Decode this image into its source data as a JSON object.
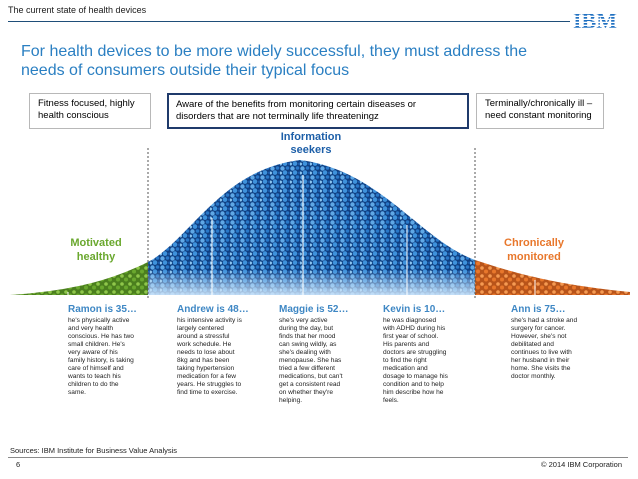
{
  "header": {
    "label": "The current state of health devices",
    "logo": "IBM",
    "headline_line1": "For health devices to be more widely successful, they must address the",
    "headline_line2": "needs of consumers outside their typical focus"
  },
  "callouts": {
    "left": [
      "Fitness focused, highly",
      "health conscious"
    ],
    "middle": [
      "Aware of the benefits from monitoring certain diseases or",
      "disorders that are not terminally life threateningz"
    ],
    "right": [
      "Terminally/chronically ill –",
      "need constant monitoring"
    ]
  },
  "segments": {
    "left": [
      "Motivated",
      "healthy"
    ],
    "center": [
      "Information",
      "seekers"
    ],
    "right": [
      "Chronically",
      "monitored"
    ]
  },
  "personas": [
    {
      "heading": "Ramon is 35…",
      "lines": [
        "he's physically active",
        "and very health",
        "conscious. He has two",
        "small children. He's",
        "very aware of his",
        "family history, is taking",
        "care of himself and",
        "wants to teach his",
        "children to do the",
        "same."
      ]
    },
    {
      "heading": "Andrew is 48…",
      "lines": [
        "his intensive activity is",
        "largely centered",
        "around a stressful",
        "work schedule. He",
        "needs to lose about",
        "8kg and has been",
        "taking hypertension",
        "medication for a few",
        "years. He struggles to",
        "find time to exercise."
      ]
    },
    {
      "heading": "Maggie is 52…",
      "lines": [
        "she's very active",
        "during the day, but",
        "finds that her mood",
        "can swing wildly, as",
        "she's dealing with",
        "menopause. She has",
        "tried a few different",
        "medications, but can't",
        "get a consistent read",
        "on whether they're",
        "helping."
      ]
    },
    {
      "heading": "Kevin is 10…",
      "lines": [
        "he was diagnosed",
        "with ADHD during his",
        "first year of school.",
        "His parents and",
        "doctors are struggling",
        "to find the right",
        "medication and",
        "dosage to manage his",
        "condition and to help",
        "him describe how he",
        "feels."
      ]
    },
    {
      "heading": "Ann is 75…",
      "lines": [
        "she's had a stroke and",
        "surgery for cancer.",
        "However, she's not",
        "debilitated and",
        "continues to live with",
        "her husband in their",
        "home. She visits the",
        "doctor monthly."
      ]
    }
  ],
  "footer": {
    "sources": "Sources: IBM Institute for Business Value Analysis",
    "page_number": "6",
    "copyright": "© 2014 IBM Corporation"
  },
  "colors": {
    "headline": "#2a7fc2",
    "green": "#6aa82e",
    "blue": "#1d5fa8",
    "orange": "#e8772b",
    "persona_heading": "#3e87c4"
  }
}
